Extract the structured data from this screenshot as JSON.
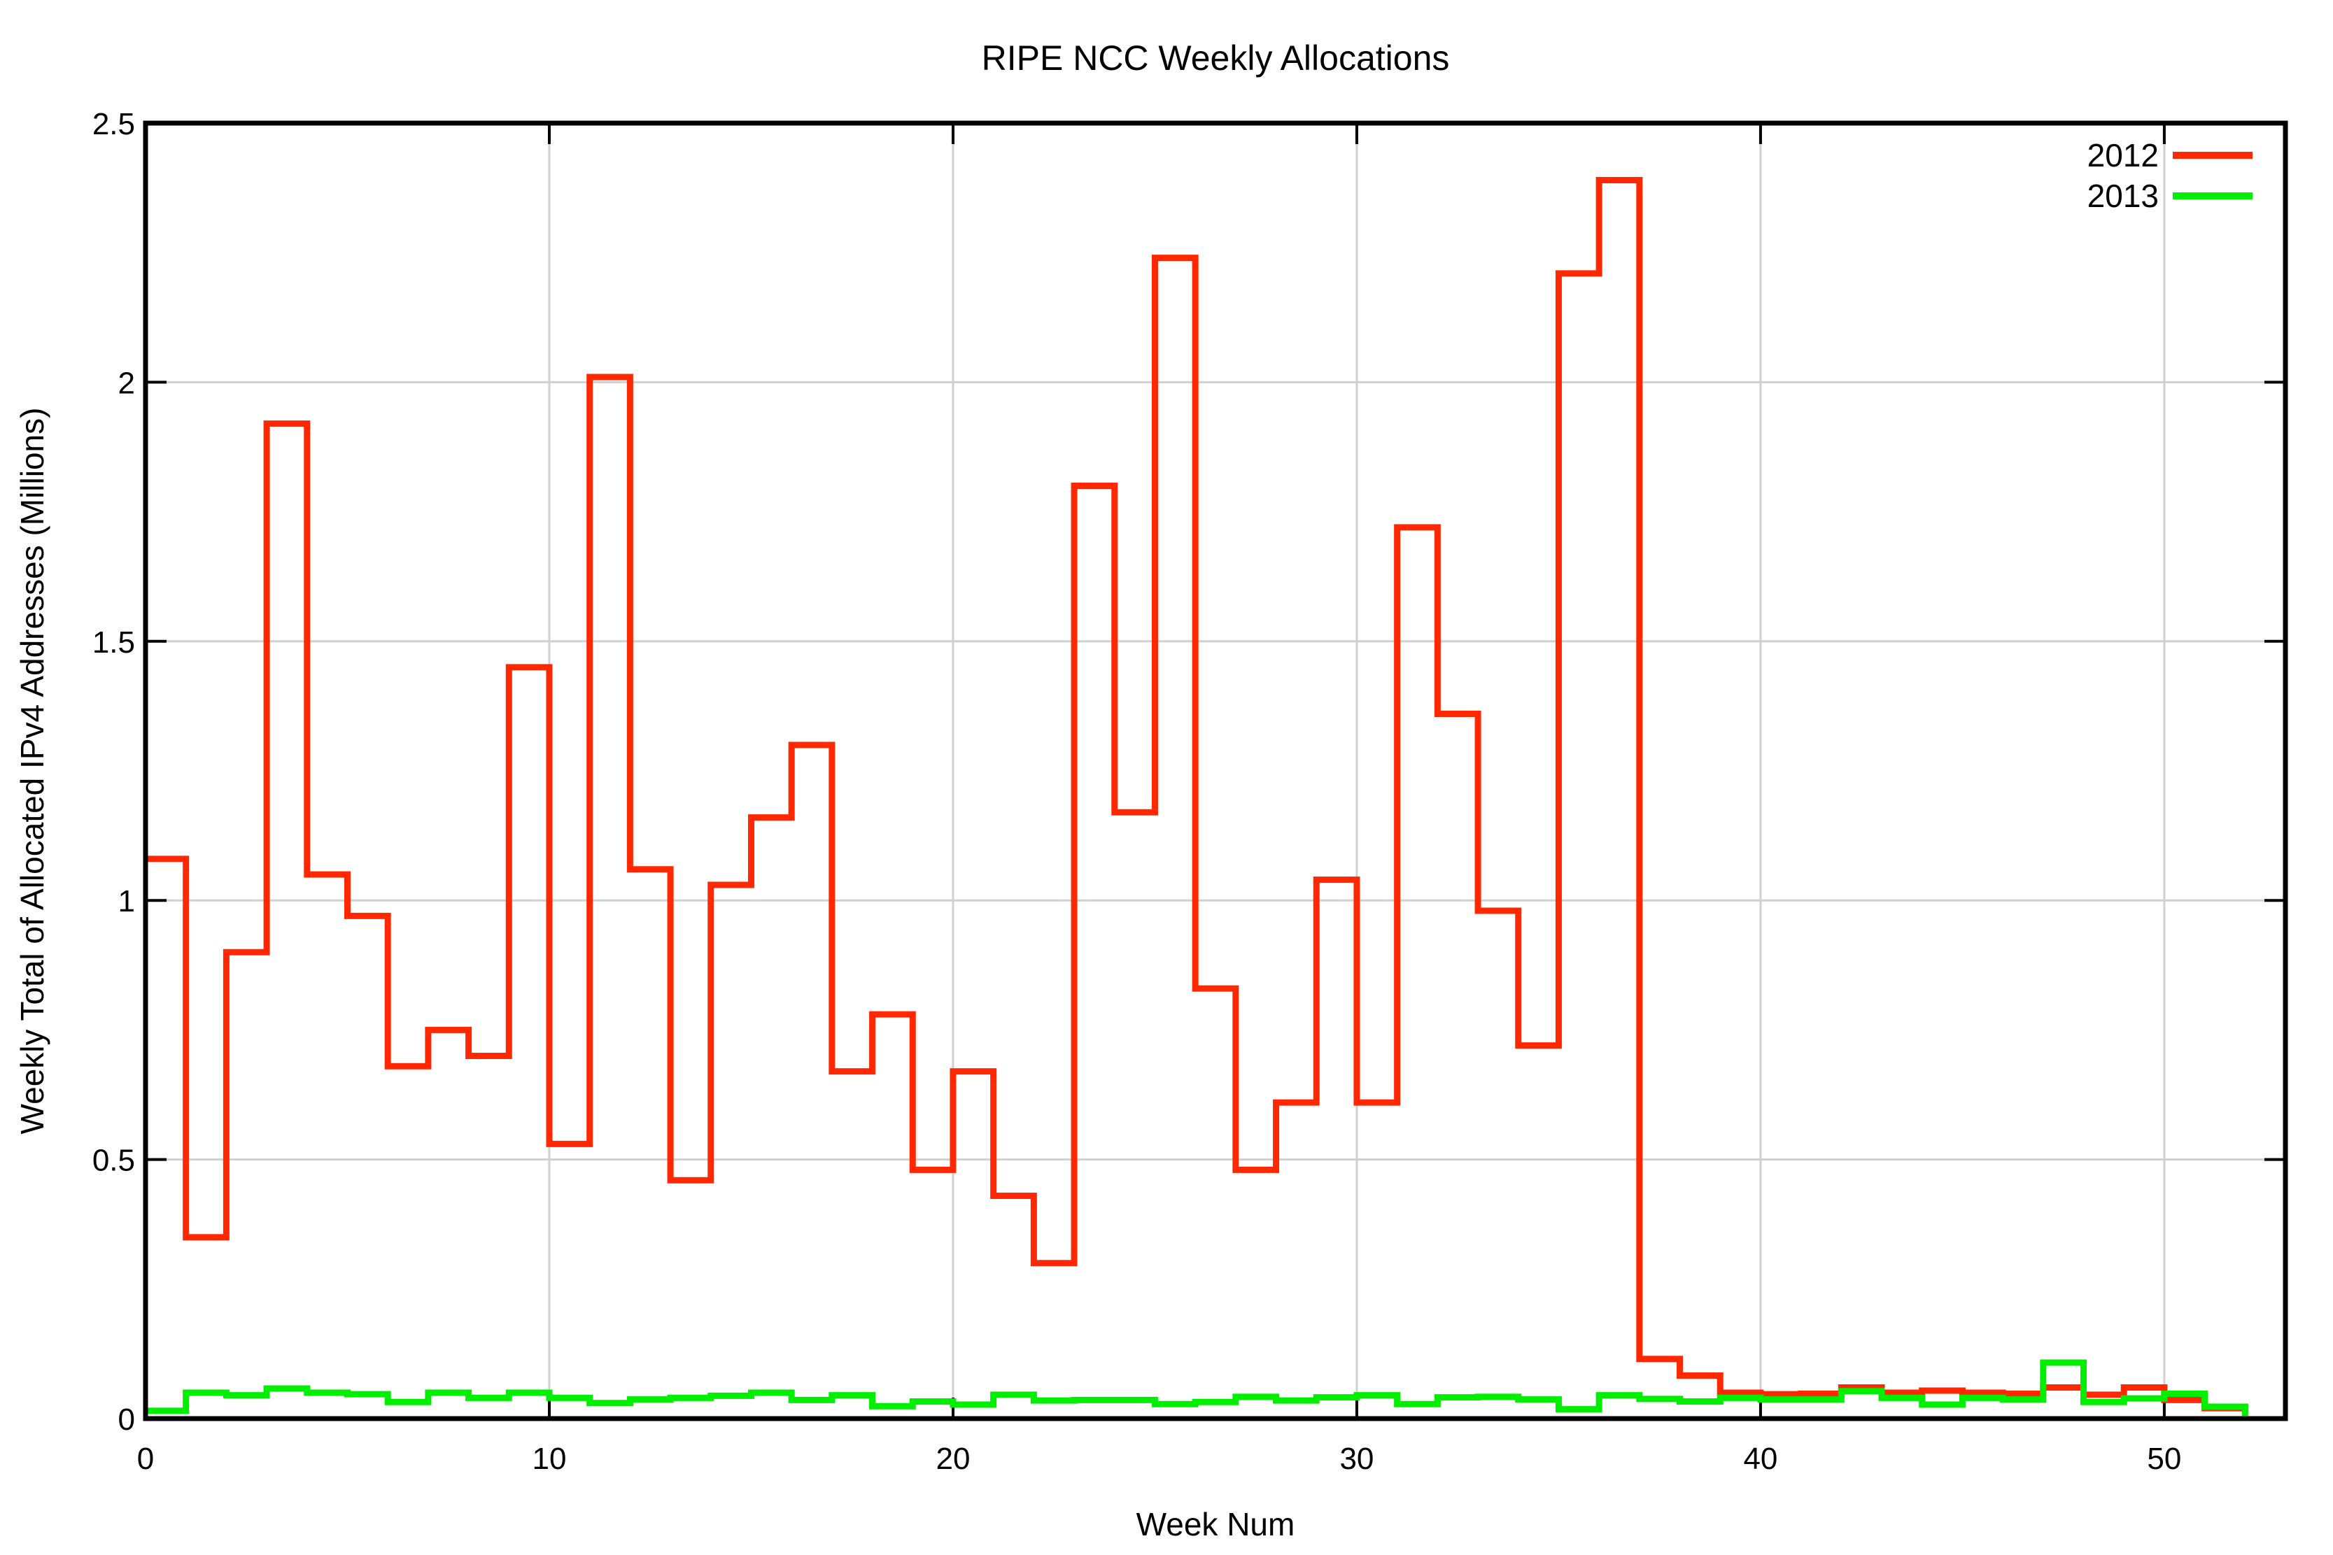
{
  "title": "RIPE NCC Weekly Allocations",
  "legend": {
    "entries": [
      {
        "label": "2012",
        "color": "#ff2800"
      },
      {
        "label": "2013",
        "color": "#00ee00"
      }
    ]
  },
  "colors": {
    "background": "#ffffff",
    "grid": "#d0d0d0",
    "axis": "#000000",
    "text": "#000000",
    "series_2012": "#ff2800",
    "series_2013": "#00ee00"
  },
  "chart_data": {
    "type": "line",
    "style": "steps",
    "title": "RIPE NCC Weekly Allocations",
    "xlabel": "Week Num",
    "ylabel": "Weekly Total of Allocated IPv4 Addresses (Millions)",
    "xlim": [
      0,
      53
    ],
    "ylim": [
      0,
      2.5
    ],
    "xticks": [
      0,
      10,
      20,
      30,
      40,
      50
    ],
    "yticks": [
      0,
      0.5,
      1,
      1.5,
      2,
      2.5
    ],
    "grid": true,
    "legend_position": "top-right-inside",
    "x": [
      0,
      1,
      2,
      3,
      4,
      5,
      6,
      7,
      8,
      9,
      10,
      11,
      12,
      13,
      14,
      15,
      16,
      17,
      18,
      19,
      20,
      21,
      22,
      23,
      24,
      25,
      26,
      27,
      28,
      29,
      30,
      31,
      32,
      33,
      34,
      35,
      36,
      37,
      38,
      39,
      40,
      41,
      42,
      43,
      44,
      45,
      46,
      47,
      48,
      49,
      50,
      51,
      52
    ],
    "series": [
      {
        "name": "2012",
        "color": "#ff2800",
        "values": [
          1.08,
          0.35,
          0.9,
          1.92,
          1.05,
          0.97,
          0.68,
          0.75,
          0.7,
          1.45,
          0.53,
          2.01,
          1.06,
          0.46,
          1.03,
          1.16,
          1.3,
          0.67,
          0.78,
          0.48,
          0.67,
          0.43,
          0.3,
          1.8,
          1.17,
          2.24,
          0.83,
          0.48,
          0.61,
          1.04,
          0.61,
          1.72,
          1.36,
          0.98,
          0.72,
          2.21,
          2.39,
          0.115,
          0.083,
          0.05,
          0.047,
          0.048,
          0.06,
          0.05,
          0.054,
          0.05,
          0.048,
          0.06,
          0.046,
          0.06,
          0.036,
          0.02,
          0.01
        ]
      },
      {
        "name": "2013",
        "color": "#00ee00",
        "values": [
          0.015,
          0.05,
          0.045,
          0.058,
          0.05,
          0.047,
          0.032,
          0.05,
          0.04,
          0.05,
          0.04,
          0.03,
          0.037,
          0.04,
          0.044,
          0.05,
          0.036,
          0.045,
          0.024,
          0.033,
          0.027,
          0.046,
          0.035,
          0.036,
          0.036,
          0.028,
          0.032,
          0.042,
          0.035,
          0.041,
          0.045,
          0.028,
          0.041,
          0.042,
          0.037,
          0.018,
          0.045,
          0.038,
          0.033,
          0.04,
          0.037,
          0.037,
          0.053,
          0.04,
          0.027,
          0.04,
          0.037,
          0.108,
          0.032,
          0.039,
          0.048,
          0.023,
          0.005
        ]
      }
    ]
  }
}
